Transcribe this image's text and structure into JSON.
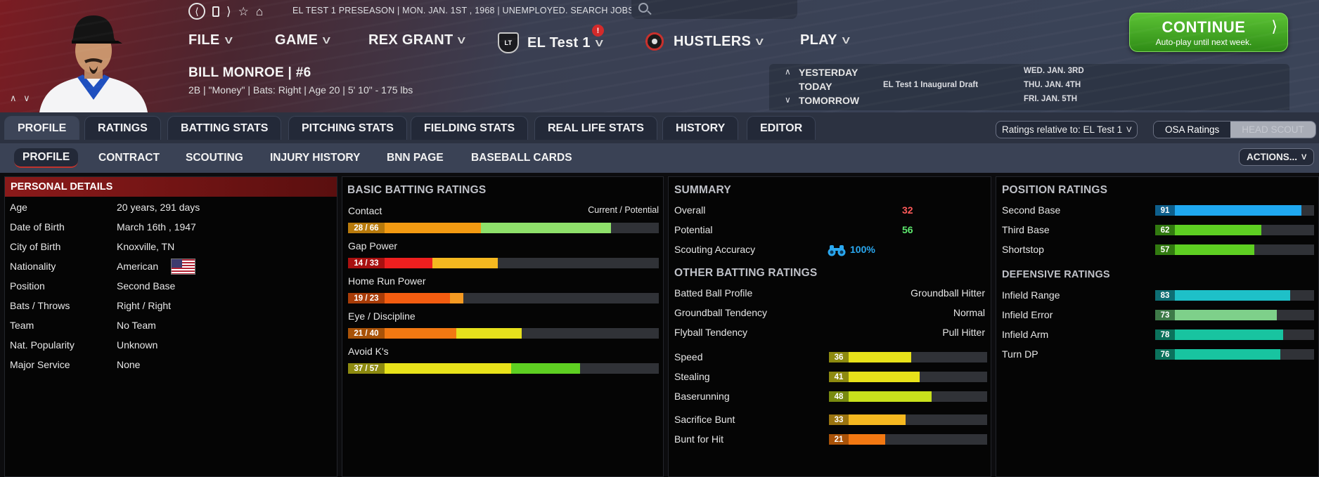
{
  "colors": {
    "accent_red": "#8b1a1a",
    "continue_green": "#3fa81f",
    "panel_bg": "#050505"
  },
  "header": {
    "nav_icons": [
      "back-icon",
      "document-icon",
      "forward-icon",
      "star-icon",
      "home-icon"
    ],
    "status_line": "EL TEST 1 PRESEASON  |  MON. JAN. 1ST , 1968  |  UNEMPLOYED. SEARCH JOBS...",
    "search": {
      "placeholder": ""
    },
    "menus": {
      "file": "FILE",
      "game": "GAME",
      "manager": "REX GRANT",
      "league": "EL Test 1",
      "team": "HUSTLERS",
      "play": "PLAY"
    },
    "alert_count": "!",
    "continue": {
      "title": "CONTINUE",
      "subtitle": "Auto-play until next week."
    },
    "schedule": {
      "rows": [
        {
          "label": "YESTERDAY",
          "event": "",
          "date": "WED. JAN. 3RD"
        },
        {
          "label": "TODAY",
          "event": "EL Test 1 Inaugural Draft",
          "date": "THU. JAN. 4TH"
        },
        {
          "label": "TOMORROW",
          "event": "",
          "date": "FRI. JAN. 5TH"
        }
      ]
    }
  },
  "player": {
    "name": "BILL MONROE  |  #6",
    "info": "2B | \"Money\" | Bats: Right  |  Age 20  |  5' 10\" - 175 lbs"
  },
  "tabs": {
    "main": [
      "PROFILE",
      "RATINGS",
      "BATTING STATS",
      "PITCHING STATS",
      "FIELDING STATS",
      "REAL LIFE STATS",
      "HISTORY",
      "EDITOR"
    ],
    "sub": [
      "PROFILE",
      "CONTRACT",
      "SCOUTING",
      "INJURY HISTORY",
      "BNN PAGE",
      "BASEBALL CARDS"
    ],
    "ratings_relative": "Ratings relative to: EL Test 1",
    "osa": "OSA Ratings",
    "head_scout": "HEAD SCOUT",
    "actions": "ACTIONS..."
  },
  "personal": {
    "title": "PERSONAL DETAILS",
    "rows": [
      {
        "k": "Age",
        "v": "20 years, 291 days"
      },
      {
        "k": "Date of Birth",
        "v": "March 16th , 1947"
      },
      {
        "k": "City of Birth",
        "v": "Knoxville, TN"
      },
      {
        "k": "Nationality",
        "v": "American"
      },
      {
        "k": "Position",
        "v": "Second Base"
      },
      {
        "k": "Bats / Throws",
        "v": "Right / Right"
      },
      {
        "k": "Team",
        "v": "No Team"
      },
      {
        "k": "Nat. Popularity",
        "v": "Unknown"
      },
      {
        "k": "Major Service",
        "v": "None"
      }
    ]
  },
  "batting": {
    "title": "BASIC BATTING RATINGS",
    "legend": "Current / Potential",
    "scale_max": 80,
    "ratings": [
      {
        "name": "Contact",
        "label": "28 / 66",
        "current": 28,
        "potential": 66,
        "c_color": "#f39a12",
        "p_color": "#8ee06a",
        "n_color": "#b87a0c"
      },
      {
        "name": "Gap Power",
        "label": "14 / 33",
        "current": 14,
        "potential": 33,
        "c_color": "#ee1f1f",
        "p_color": "#f5b820",
        "n_color": "#a81010"
      },
      {
        "name": "Home Run Power",
        "label": "19 / 23",
        "current": 19,
        "potential": 23,
        "c_color": "#f25c10",
        "p_color": "#f59a22",
        "n_color": "#a83c08"
      },
      {
        "name": "Eye / Discipline",
        "label": "21 / 40",
        "current": 21,
        "potential": 40,
        "c_color": "#f27812",
        "p_color": "#e6e01c",
        "n_color": "#a85208"
      },
      {
        "name": "Avoid K's",
        "label": "37 / 57",
        "current": 37,
        "potential": 57,
        "c_color": "#e8e21a",
        "p_color": "#5ecf22",
        "n_color": "#8d8a10"
      }
    ]
  },
  "summary": {
    "title": "SUMMARY",
    "overall_label": "Overall",
    "overall": "32",
    "potential_label": "Potential",
    "potential": "56",
    "accuracy_label": "Scouting Accuracy",
    "accuracy": "100%",
    "other_title": "OTHER BATTING RATINGS",
    "other": [
      {
        "k": "Batted Ball Profile",
        "v": "Groundball Hitter"
      },
      {
        "k": "Groundball Tendency",
        "v": "Normal"
      },
      {
        "k": "Flyball Tendency",
        "v": "Pull Hitter"
      }
    ],
    "scale_max": 80,
    "running": [
      {
        "name": "Speed",
        "value": 36,
        "color": "#e8e21a",
        "n_color": "#8d8a10"
      },
      {
        "name": "Stealing",
        "value": 41,
        "color": "#e8e21a",
        "n_color": "#8d8a10"
      },
      {
        "name": "Baserunning",
        "value": 48,
        "color": "#c8e01c",
        "n_color": "#788a10"
      }
    ],
    "bunting": [
      {
        "name": "Sacrifice Bunt",
        "value": 33,
        "color": "#f5b820",
        "n_color": "#9a7410"
      },
      {
        "name": "Bunt for Hit",
        "value": 21,
        "color": "#f27812",
        "n_color": "#a85208"
      }
    ]
  },
  "positions": {
    "title": "POSITION RATINGS",
    "scale_max": 80,
    "ratings": [
      {
        "name": "Second Base",
        "value": 91,
        "color": "#1fa8f0",
        "n_color": "#0e5f8c"
      },
      {
        "name": "Third Base",
        "value": 62,
        "color": "#5ecf22",
        "n_color": "#327a10"
      },
      {
        "name": "Shortstop",
        "value": 57,
        "color": "#5ecf22",
        "n_color": "#327a10"
      }
    ],
    "def_title": "DEFENSIVE RATINGS",
    "defensive": [
      {
        "name": "Infield Range",
        "value": 83,
        "color": "#1ec0c8",
        "n_color": "#0e6e74"
      },
      {
        "name": "Infield Error",
        "value": 73,
        "color": "#7ed08a",
        "n_color": "#3e7a48"
      },
      {
        "name": "Infield Arm",
        "value": 78,
        "color": "#18c4a0",
        "n_color": "#0b725c"
      },
      {
        "name": "Turn DP",
        "value": 76,
        "color": "#18c4a0",
        "n_color": "#0b725c"
      }
    ]
  }
}
